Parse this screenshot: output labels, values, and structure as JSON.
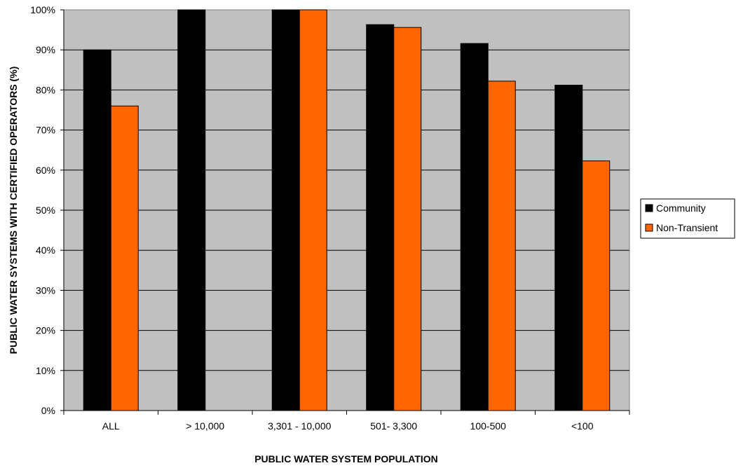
{
  "chart_data": {
    "type": "bar",
    "title": "",
    "xlabel": "PUBLIC WATER SYSTEM POPULATION",
    "ylabel": "PUBLIC WATER SYSTEMS WITH CERTIFIED OPERATORS (%)",
    "categories": [
      "ALL",
      "> 10,000",
      "3,301 - 10,000",
      "501- 3,300",
      "100-500",
      "<100"
    ],
    "series": [
      {
        "name": "Community",
        "color": "#000000",
        "values": [
          90,
          100,
          100,
          96.3,
          91.6,
          81.2
        ]
      },
      {
        "name": "Non-Transient",
        "color": "#FF6600",
        "values": [
          76,
          null,
          100,
          95.6,
          82.2,
          62.3
        ]
      }
    ],
    "ylim": [
      0,
      100
    ],
    "yticks": [
      "0%",
      "10%",
      "20%",
      "30%",
      "40%",
      "50%",
      "60%",
      "70%",
      "80%",
      "90%",
      "100%"
    ],
    "ytick_values": [
      0,
      10,
      20,
      30,
      40,
      50,
      60,
      70,
      80,
      90,
      100
    ],
    "grid": true,
    "legend": "right",
    "plot_background": "#C0C0C0"
  }
}
